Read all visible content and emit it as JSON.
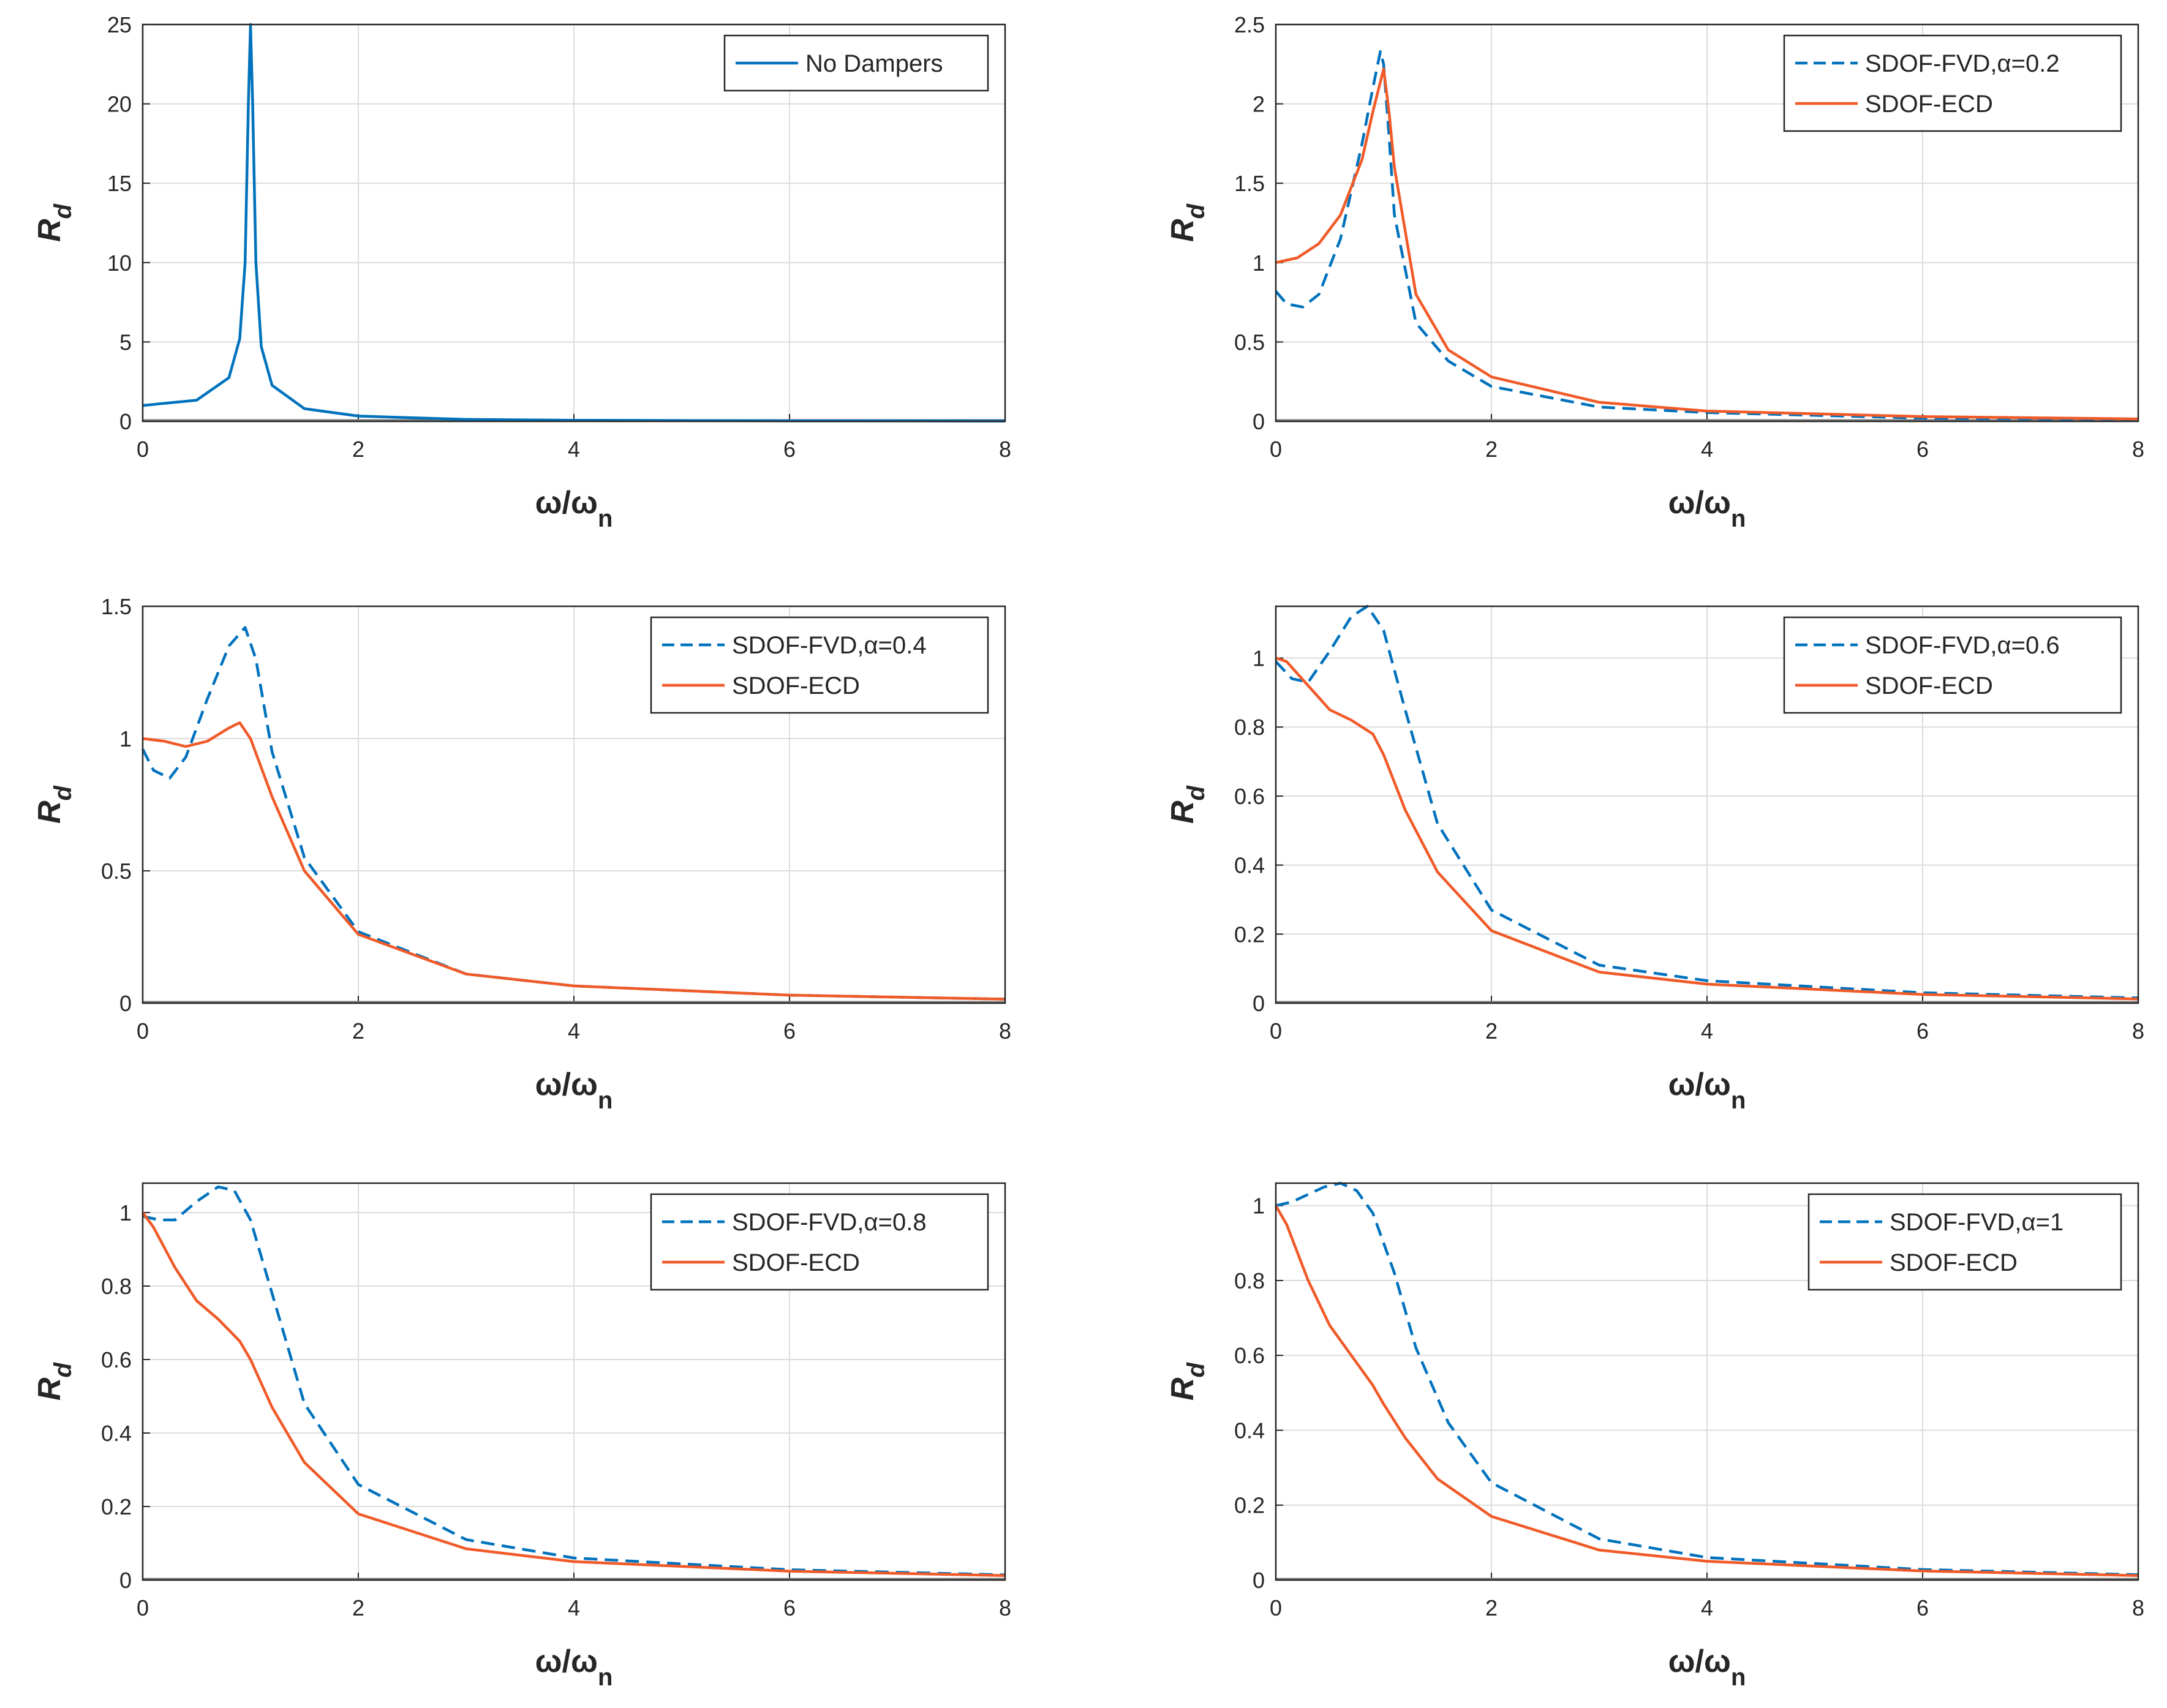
{
  "colors": {
    "fvd": "#0072BD",
    "ecd": "#F05A28",
    "nodamp": "#0072BD",
    "grid": "#dcdcdc",
    "axis": "#262626",
    "zero_line": "#7f7f7f"
  },
  "chart_data": [
    {
      "type": "line",
      "title": "",
      "xlabel": {
        "main": "ω/ω",
        "sub": "n"
      },
      "ylabel": {
        "main": "R",
        "sub": "d"
      },
      "xlim": [
        0,
        8
      ],
      "ylim": [
        0,
        25
      ],
      "xticks": [
        "0",
        "2",
        "4",
        "6",
        "8"
      ],
      "yticks": [
        "0",
        "5",
        "10",
        "15",
        "20",
        "25"
      ],
      "grid": true,
      "legend": "top-right",
      "series": [
        {
          "name": "No Dampers",
          "style": "solid",
          "color": "#0072BD",
          "x": [
            0,
            0.5,
            0.8,
            0.9,
            0.95,
            0.98,
            1.0,
            1.02,
            1.05,
            1.1,
            1.2,
            1.5,
            2,
            3,
            4,
            6,
            8
          ],
          "y": [
            1.0,
            1.33,
            2.75,
            5.2,
            10,
            20,
            25,
            20,
            10,
            4.7,
            2.27,
            0.8,
            0.33,
            0.12,
            0.07,
            0.03,
            0.02
          ]
        }
      ]
    },
    {
      "type": "line",
      "title": "",
      "xlabel": {
        "main": "ω/ω",
        "sub": "n"
      },
      "ylabel": {
        "main": "R",
        "sub": "d"
      },
      "xlim": [
        0,
        8
      ],
      "ylim": [
        0,
        2.5
      ],
      "xticks": [
        "0",
        "2",
        "4",
        "6",
        "8"
      ],
      "yticks": [
        "0",
        "0.5",
        "1",
        "1.5",
        "2",
        "2.5"
      ],
      "grid": true,
      "legend": "top-right",
      "series": [
        {
          "name": "SDOF-FVD,α=0.2",
          "style": "dashed",
          "color": "#0072BD",
          "x": [
            0,
            0.1,
            0.25,
            0.4,
            0.6,
            0.8,
            0.9,
            0.97,
            1.0,
            1.05,
            1.1,
            1.3,
            1.6,
            2,
            3,
            4,
            6,
            8
          ],
          "y": [
            0.82,
            0.74,
            0.72,
            0.8,
            1.15,
            1.75,
            2.1,
            2.33,
            2.25,
            1.8,
            1.3,
            0.62,
            0.38,
            0.22,
            0.09,
            0.055,
            0.02,
            0.01
          ]
        },
        {
          "name": "SDOF-ECD",
          "style": "solid",
          "color": "#F05A28",
          "x": [
            0,
            0.2,
            0.4,
            0.6,
            0.8,
            0.9,
            1.0,
            1.05,
            1.1,
            1.3,
            1.6,
            2,
            3,
            4,
            6,
            8
          ],
          "y": [
            1.0,
            1.03,
            1.12,
            1.3,
            1.65,
            1.95,
            2.22,
            1.95,
            1.6,
            0.8,
            0.45,
            0.28,
            0.12,
            0.065,
            0.03,
            0.015
          ]
        }
      ]
    },
    {
      "type": "line",
      "title": "",
      "xlabel": {
        "main": "ω/ω",
        "sub": "n"
      },
      "ylabel": {
        "main": "R",
        "sub": "d"
      },
      "xlim": [
        0,
        8
      ],
      "ylim": [
        0,
        1.5
      ],
      "xticks": [
        "0",
        "2",
        "4",
        "6",
        "8"
      ],
      "yticks": [
        "0",
        "0.5",
        "1",
        "1.5"
      ],
      "grid": true,
      "legend": "top-right",
      "series": [
        {
          "name": "SDOF-FVD,α=0.4",
          "style": "dashed",
          "color": "#0072BD",
          "x": [
            0,
            0.1,
            0.25,
            0.4,
            0.6,
            0.8,
            0.95,
            1.05,
            1.2,
            1.5,
            2,
            3,
            4,
            6,
            8
          ],
          "y": [
            0.96,
            0.88,
            0.85,
            0.93,
            1.15,
            1.35,
            1.42,
            1.3,
            0.95,
            0.55,
            0.27,
            0.11,
            0.065,
            0.03,
            0.015
          ]
        },
        {
          "name": "SDOF-ECD",
          "style": "solid",
          "color": "#F05A28",
          "x": [
            0,
            0.2,
            0.4,
            0.6,
            0.8,
            0.9,
            1.0,
            1.2,
            1.5,
            2,
            3,
            4,
            6,
            8
          ],
          "y": [
            1.0,
            0.99,
            0.97,
            0.99,
            1.04,
            1.06,
            1.0,
            0.78,
            0.5,
            0.26,
            0.11,
            0.065,
            0.03,
            0.015
          ]
        }
      ]
    },
    {
      "type": "line",
      "title": "",
      "xlabel": {
        "main": "ω/ω",
        "sub": "n"
      },
      "ylabel": {
        "main": "R",
        "sub": "d"
      },
      "xlim": [
        0,
        8
      ],
      "ylim": [
        0,
        1.15
      ],
      "xticks": [
        "0",
        "2",
        "4",
        "6",
        "8"
      ],
      "yticks": [
        "0",
        "0.2",
        "0.4",
        "0.6",
        "0.8",
        "1"
      ],
      "grid": true,
      "legend": "top-right",
      "series": [
        {
          "name": "SDOF-FVD,α=0.6",
          "style": "dashed",
          "color": "#0072BD",
          "x": [
            0,
            0.15,
            0.3,
            0.5,
            0.7,
            0.85,
            1.0,
            1.2,
            1.5,
            2,
            3,
            4,
            6,
            8
          ],
          "y": [
            0.99,
            0.94,
            0.93,
            1.02,
            1.12,
            1.15,
            1.08,
            0.85,
            0.52,
            0.27,
            0.11,
            0.065,
            0.03,
            0.015
          ]
        },
        {
          "name": "SDOF-ECD",
          "style": "solid",
          "color": "#F05A28",
          "x": [
            0,
            0.1,
            0.3,
            0.5,
            0.7,
            0.9,
            1.0,
            1.2,
            1.5,
            2,
            3,
            4,
            6,
            8
          ],
          "y": [
            1.0,
            0.99,
            0.92,
            0.85,
            0.82,
            0.78,
            0.72,
            0.56,
            0.38,
            0.21,
            0.09,
            0.055,
            0.025,
            0.012
          ]
        }
      ]
    },
    {
      "type": "line",
      "title": "",
      "xlabel": {
        "main": "ω/ω",
        "sub": "n"
      },
      "ylabel": {
        "main": "R",
        "sub": "d"
      },
      "xlim": [
        0,
        8
      ],
      "ylim": [
        0,
        1.08
      ],
      "xticks": [
        "0",
        "2",
        "4",
        "6",
        "8"
      ],
      "yticks": [
        "0",
        "0.2",
        "0.4",
        "0.6",
        "0.8",
        "1"
      ],
      "grid": true,
      "legend": "top-right",
      "series": [
        {
          "name": "SDOF-FVD,α=0.8",
          "style": "dashed",
          "color": "#0072BD",
          "x": [
            0,
            0.15,
            0.3,
            0.5,
            0.7,
            0.85,
            1.0,
            1.2,
            1.5,
            2,
            3,
            4,
            6,
            8
          ],
          "y": [
            0.99,
            0.98,
            0.98,
            1.03,
            1.07,
            1.06,
            0.98,
            0.78,
            0.48,
            0.26,
            0.11,
            0.06,
            0.028,
            0.014
          ]
        },
        {
          "name": "SDOF-ECD",
          "style": "solid",
          "color": "#F05A28",
          "x": [
            0,
            0.1,
            0.3,
            0.5,
            0.7,
            0.9,
            1.0,
            1.2,
            1.5,
            2,
            3,
            4,
            6,
            8
          ],
          "y": [
            1.0,
            0.96,
            0.85,
            0.76,
            0.71,
            0.65,
            0.6,
            0.47,
            0.32,
            0.18,
            0.085,
            0.05,
            0.024,
            0.012
          ]
        }
      ]
    },
    {
      "type": "line",
      "title": "",
      "xlabel": {
        "main": "ω/ω",
        "sub": "n"
      },
      "ylabel": {
        "main": "R",
        "sub": "d"
      },
      "xlim": [
        0,
        8
      ],
      "ylim": [
        0,
        1.06
      ],
      "xticks": [
        "0",
        "2",
        "4",
        "6",
        "8"
      ],
      "yticks": [
        "0",
        "0.2",
        "0.4",
        "0.6",
        "0.8",
        "1"
      ],
      "grid": true,
      "legend": "top-right",
      "series": [
        {
          "name": "SDOF-FVD,α=1",
          "style": "dashed",
          "color": "#0072BD",
          "x": [
            0,
            0.15,
            0.3,
            0.45,
            0.6,
            0.75,
            0.9,
            1.1,
            1.3,
            1.6,
            2,
            3,
            4,
            6,
            8
          ],
          "y": [
            1.0,
            1.01,
            1.03,
            1.05,
            1.06,
            1.04,
            0.98,
            0.82,
            0.62,
            0.42,
            0.26,
            0.11,
            0.06,
            0.028,
            0.014
          ]
        },
        {
          "name": "SDOF-ECD",
          "style": "solid",
          "color": "#F05A28",
          "x": [
            0,
            0.1,
            0.3,
            0.5,
            0.7,
            0.9,
            1.0,
            1.2,
            1.5,
            2,
            3,
            4,
            6,
            8
          ],
          "y": [
            1.0,
            0.95,
            0.8,
            0.68,
            0.6,
            0.52,
            0.47,
            0.38,
            0.27,
            0.17,
            0.08,
            0.05,
            0.024,
            0.012
          ]
        }
      ]
    }
  ]
}
